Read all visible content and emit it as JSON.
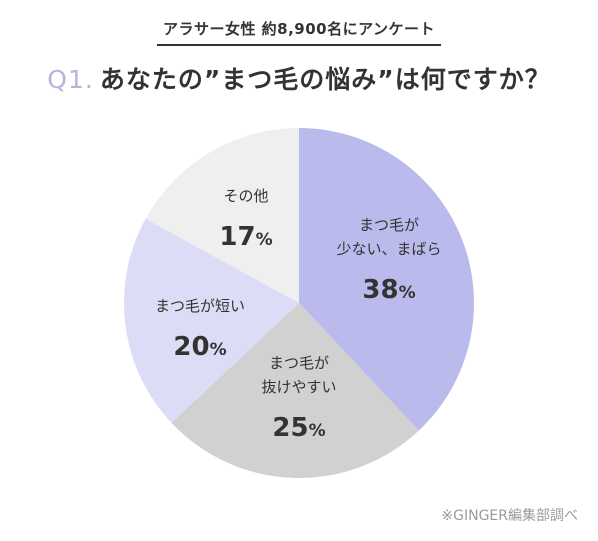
{
  "header": "アラサー女性 約8,900名にアンケート",
  "question": {
    "number": "Q1.",
    "text": "あなたの”まつ毛の悩み”は何ですか？"
  },
  "source": "※GINGER編集部調べ",
  "chart_data": {
    "type": "pie",
    "title": "あなたの”まつ毛の悩み”は何ですか？",
    "unit": "%",
    "slices": [
      {
        "label": "まつ毛が少ない、まばら",
        "label_lines": [
          "まつ毛が",
          "少ない、まばら"
        ],
        "value": 38,
        "color": "#babaed"
      },
      {
        "label": "まつ毛が抜けやすい",
        "label_lines": [
          "まつ毛が",
          "抜けやすい"
        ],
        "value": 25,
        "color": "#d1d1d1"
      },
      {
        "label": "まつ毛が短い",
        "label_lines": [
          "まつ毛が短い"
        ],
        "value": 20,
        "color": "#dcdcf6"
      },
      {
        "label": "その他",
        "label_lines": [
          "その他"
        ],
        "value": 17,
        "color": "#efefef"
      }
    ]
  }
}
